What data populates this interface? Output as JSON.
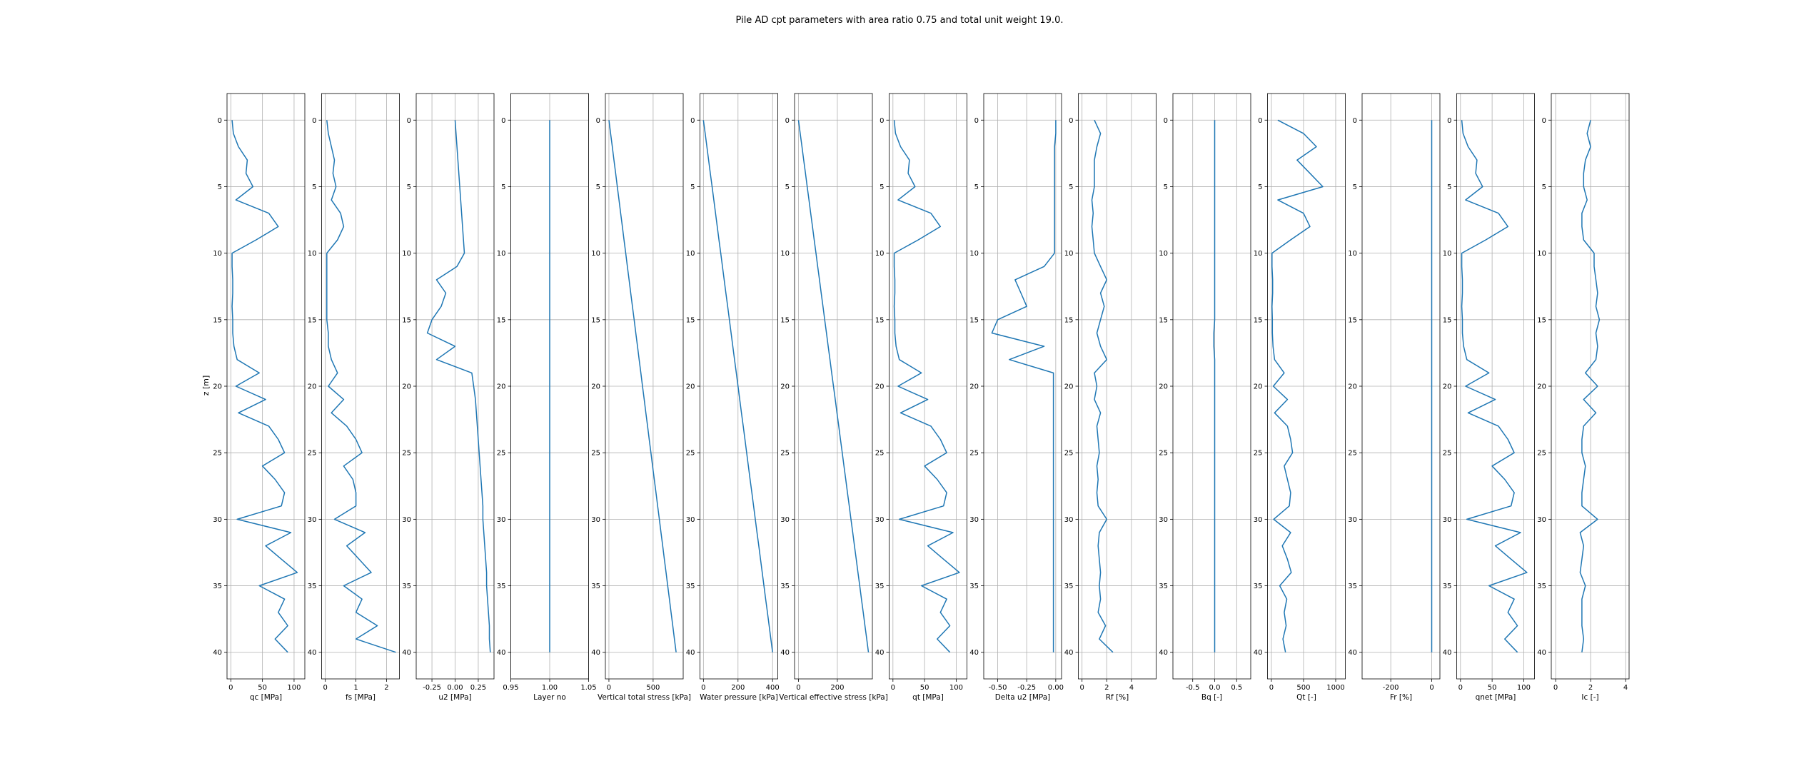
{
  "figure": {
    "title": "Pile AD cpt parameters with area ratio 0.75 and total unit weight 19.0.",
    "ylabel": "z [m]",
    "line_color": "#1f77b4",
    "grid_color": "#b0b0b0"
  },
  "chart_data": {
    "type": "line",
    "title": "Pile AD cpt parameters with area ratio 0.75 and total unit weight 19.0.",
    "shared_y": {
      "label": "z [m]",
      "ylim": [
        42,
        -2
      ],
      "ticks": [
        0,
        5,
        10,
        15,
        20,
        25,
        30,
        35,
        40
      ],
      "tick_labels": [
        "0",
        "5",
        "10",
        "15",
        "20",
        "25",
        "30",
        "35",
        "40"
      ]
    },
    "z": [
      0,
      1,
      2,
      3,
      4,
      5,
      6,
      7,
      8,
      9,
      10,
      11,
      12,
      13,
      14,
      15,
      16,
      17,
      18,
      19,
      20,
      21,
      22,
      23,
      24,
      25,
      26,
      27,
      28,
      29,
      30,
      31,
      32,
      33,
      34,
      35,
      36,
      37,
      38,
      39,
      40
    ],
    "panels": [
      {
        "xlabel": "qc [MPa]",
        "xlim": [
          -6,
          117
        ],
        "ticks": [
          0,
          50,
          100
        ],
        "tick_labels": [
          "0",
          "50",
          "100"
        ],
        "values": [
          2,
          4,
          12,
          26,
          24,
          35,
          8,
          60,
          75,
          40,
          2,
          2,
          3,
          3,
          2,
          3,
          3,
          5,
          10,
          45,
          8,
          55,
          12,
          60,
          75,
          85,
          50,
          70,
          85,
          80,
          10,
          95,
          55,
          80,
          105,
          45,
          85,
          75,
          90,
          70,
          90
        ]
      },
      {
        "xlabel": "fs [MPa]",
        "xlim": [
          -0.12,
          2.42
        ],
        "ticks": [
          0,
          1,
          2
        ],
        "tick_labels": [
          "0",
          "1",
          "2"
        ],
        "values": [
          0.05,
          0.1,
          0.2,
          0.3,
          0.25,
          0.35,
          0.2,
          0.5,
          0.6,
          0.4,
          0.05,
          0.05,
          0.05,
          0.05,
          0.05,
          0.05,
          0.1,
          0.1,
          0.2,
          0.4,
          0.1,
          0.6,
          0.2,
          0.7,
          1.0,
          1.2,
          0.6,
          0.9,
          1.0,
          1.0,
          0.3,
          1.3,
          0.7,
          1.1,
          1.5,
          0.6,
          1.2,
          1.0,
          1.7,
          1.0,
          2.3
        ]
      },
      {
        "xlabel": "u2 [MPa]",
        "xlim": [
          -0.42,
          0.42
        ],
        "ticks": [
          -0.25,
          0.0,
          0.25
        ],
        "tick_labels": [
          "-0.25",
          "0.00",
          "0.25"
        ],
        "values": [
          0.0,
          0.01,
          0.02,
          0.03,
          0.04,
          0.05,
          0.06,
          0.07,
          0.08,
          0.09,
          0.1,
          0.02,
          -0.2,
          -0.1,
          -0.15,
          -0.25,
          -0.3,
          0.0,
          -0.2,
          0.18,
          0.2,
          0.22,
          0.23,
          0.24,
          0.25,
          0.26,
          0.27,
          0.28,
          0.29,
          0.3,
          0.3,
          0.31,
          0.32,
          0.33,
          0.34,
          0.34,
          0.35,
          0.36,
          0.37,
          0.37,
          0.38
        ]
      },
      {
        "xlabel": "Layer no",
        "xlim": [
          0.95,
          1.05
        ],
        "ticks": [
          0.95,
          1.0,
          1.05
        ],
        "tick_labels": [
          "0.95",
          "1.00",
          "1.05"
        ],
        "values": [
          1,
          1,
          1,
          1,
          1,
          1,
          1,
          1,
          1,
          1,
          1,
          1,
          1,
          1,
          1,
          1,
          1,
          1,
          1,
          1,
          1,
          1,
          1,
          1,
          1,
          1,
          1,
          1,
          1,
          1,
          1,
          1,
          1,
          1,
          1,
          1,
          1,
          1,
          1,
          1,
          1
        ]
      },
      {
        "xlabel": "Vertical total stress [kPa]",
        "xlim": [
          -40,
          840
        ],
        "ticks": [
          0,
          500
        ],
        "tick_labels": [
          "0",
          "500"
        ],
        "values": [
          0,
          19,
          38,
          57,
          76,
          95,
          114,
          133,
          152,
          171,
          190,
          209,
          228,
          247,
          266,
          285,
          304,
          323,
          342,
          361,
          380,
          399,
          418,
          437,
          456,
          475,
          494,
          513,
          532,
          551,
          570,
          589,
          608,
          627,
          646,
          665,
          684,
          703,
          722,
          741,
          760
        ]
      },
      {
        "xlabel": "Water pressure [kPa]",
        "xlim": [
          -20,
          430
        ],
        "ticks": [
          0,
          200,
          400
        ],
        "tick_labels": [
          "0",
          "200",
          "400"
        ],
        "values": [
          0,
          10,
          20,
          30,
          40,
          50,
          60,
          70,
          80,
          90,
          100,
          110,
          120,
          130,
          140,
          150,
          160,
          170,
          180,
          190,
          200,
          210,
          220,
          230,
          240,
          250,
          260,
          270,
          280,
          290,
          300,
          310,
          320,
          330,
          340,
          350,
          360,
          370,
          380,
          390,
          400
        ]
      },
      {
        "xlabel": "Vertical effective stress [kPa]",
        "xlim": [
          -20,
          380
        ],
        "ticks": [
          0,
          200
        ],
        "tick_labels": [
          "0",
          "200"
        ],
        "values": [
          0,
          9,
          18,
          27,
          36,
          45,
          54,
          63,
          72,
          81,
          90,
          99,
          108,
          117,
          126,
          135,
          144,
          153,
          162,
          171,
          180,
          189,
          198,
          207,
          216,
          225,
          234,
          243,
          252,
          261,
          270,
          279,
          288,
          297,
          306,
          315,
          324,
          333,
          342,
          351,
          360
        ]
      },
      {
        "xlabel": "qt [MPa]",
        "xlim": [
          -6,
          117
        ],
        "ticks": [
          0,
          50,
          100
        ],
        "tick_labels": [
          "0",
          "50",
          "100"
        ],
        "values": [
          2,
          4,
          12,
          26,
          24,
          35,
          8,
          60,
          75,
          40,
          2,
          2,
          3,
          3,
          2,
          3,
          3,
          5,
          10,
          45,
          8,
          55,
          12,
          60,
          75,
          85,
          50,
          70,
          85,
          80,
          10,
          95,
          55,
          80,
          105,
          45,
          85,
          75,
          90,
          70,
          90
        ]
      },
      {
        "xlabel": "Delta u2 [MPa]",
        "xlim": [
          -0.62,
          0.05
        ],
        "ticks": [
          -0.5,
          -0.25,
          0.0
        ],
        "tick_labels": [
          "-0.50",
          "-0.25",
          "0.00"
        ],
        "values": [
          0.0,
          0.0,
          -0.01,
          -0.01,
          -0.01,
          -0.01,
          -0.01,
          -0.01,
          -0.01,
          -0.01,
          -0.01,
          -0.1,
          -0.35,
          -0.3,
          -0.25,
          -0.5,
          -0.55,
          -0.1,
          -0.4,
          -0.02,
          -0.02,
          -0.02,
          -0.02,
          -0.02,
          -0.02,
          -0.02,
          -0.02,
          -0.02,
          -0.02,
          -0.02,
          -0.02,
          -0.02,
          -0.02,
          -0.02,
          -0.02,
          -0.02,
          -0.02,
          -0.02,
          -0.02,
          -0.02,
          -0.02
        ]
      },
      {
        "xlabel": "Rf [%]",
        "xlim": [
          -0.3,
          6.0
        ],
        "ticks": [
          0,
          2,
          4
        ],
        "tick_labels": [
          "0",
          "2",
          "4"
        ],
        "values": [
          1.0,
          1.5,
          1.2,
          1.0,
          1.0,
          1.0,
          0.8,
          0.9,
          0.8,
          0.9,
          1.0,
          1.5,
          2.0,
          1.5,
          1.8,
          1.5,
          1.2,
          1.5,
          2.0,
          1.0,
          1.2,
          1.0,
          1.5,
          1.2,
          1.3,
          1.4,
          1.2,
          1.3,
          1.2,
          1.3,
          2.0,
          1.4,
          1.3,
          1.4,
          1.5,
          1.4,
          1.5,
          1.3,
          1.9,
          1.4,
          2.5
        ]
      },
      {
        "xlabel": "Bq [-]",
        "xlim": [
          -0.95,
          0.82
        ],
        "ticks": [
          -0.5,
          0.0,
          0.5
        ],
        "tick_labels": [
          "-0.5",
          "0.0",
          "0.5"
        ],
        "values": [
          0.0,
          0.0,
          0.0,
          0.0,
          0.0,
          0.0,
          0.0,
          0.0,
          0.0,
          0.0,
          0.0,
          0.0,
          0.0,
          0.0,
          0.0,
          0.0,
          -0.02,
          -0.02,
          0.0,
          0.0,
          0.0,
          0.0,
          0.0,
          0.0,
          0.0,
          0.0,
          0.0,
          0.0,
          0.0,
          0.0,
          0.0,
          0.0,
          0.0,
          0.0,
          0.0,
          0.0,
          0.0,
          0.0,
          0.0,
          0.0,
          0.0
        ]
      },
      {
        "xlabel": "Qt [-]",
        "xlim": [
          -60,
          1150
        ],
        "ticks": [
          0,
          500,
          1000
        ],
        "tick_labels": [
          "0",
          "500",
          "1000"
        ],
        "values": [
          100,
          500,
          700,
          400,
          600,
          800,
          100,
          500,
          600,
          300,
          10,
          10,
          20,
          20,
          10,
          15,
          15,
          25,
          50,
          200,
          30,
          250,
          50,
          250,
          300,
          330,
          200,
          250,
          300,
          280,
          35,
          300,
          170,
          250,
          310,
          130,
          240,
          200,
          230,
          180,
          220
        ]
      },
      {
        "xlabel": "Fr [%]",
        "xlim": [
          -340,
          40
        ],
        "ticks": [
          -200,
          0
        ],
        "tick_labels": [
          "-200",
          "0"
        ],
        "values": [
          0,
          0,
          0,
          0,
          0,
          0,
          0,
          0,
          0,
          0,
          0,
          0,
          0,
          0,
          0,
          0,
          0,
          0,
          0,
          0,
          0,
          0,
          0,
          0,
          0,
          0,
          0,
          0,
          0,
          0,
          0,
          0,
          0,
          0,
          0,
          0,
          0,
          0,
          0,
          0,
          0
        ]
      },
      {
        "xlabel": "qnet [MPa]",
        "xlim": [
          -6,
          117
        ],
        "ticks": [
          0,
          50,
          100
        ],
        "tick_labels": [
          "0",
          "50",
          "100"
        ],
        "values": [
          2,
          4,
          12,
          26,
          24,
          35,
          8,
          60,
          75,
          40,
          2,
          2,
          3,
          3,
          2,
          3,
          3,
          5,
          10,
          45,
          8,
          55,
          12,
          60,
          75,
          85,
          50,
          70,
          85,
          80,
          10,
          95,
          55,
          80,
          105,
          45,
          85,
          75,
          90,
          70,
          90
        ]
      },
      {
        "xlabel": "Ic [-]",
        "xlim": [
          -0.25,
          4.2
        ],
        "ticks": [
          0,
          2,
          4
        ],
        "tick_labels": [
          "0",
          "2",
          "4"
        ],
        "values": [
          2.0,
          1.8,
          2.0,
          1.7,
          1.6,
          1.6,
          1.8,
          1.5,
          1.5,
          1.6,
          2.2,
          2.2,
          2.3,
          2.4,
          2.3,
          2.5,
          2.3,
          2.4,
          2.3,
          1.7,
          2.4,
          1.6,
          2.3,
          1.6,
          1.5,
          1.5,
          1.7,
          1.6,
          1.5,
          1.5,
          2.4,
          1.4,
          1.6,
          1.5,
          1.4,
          1.7,
          1.5,
          1.5,
          1.5,
          1.6,
          1.5
        ]
      }
    ]
  }
}
